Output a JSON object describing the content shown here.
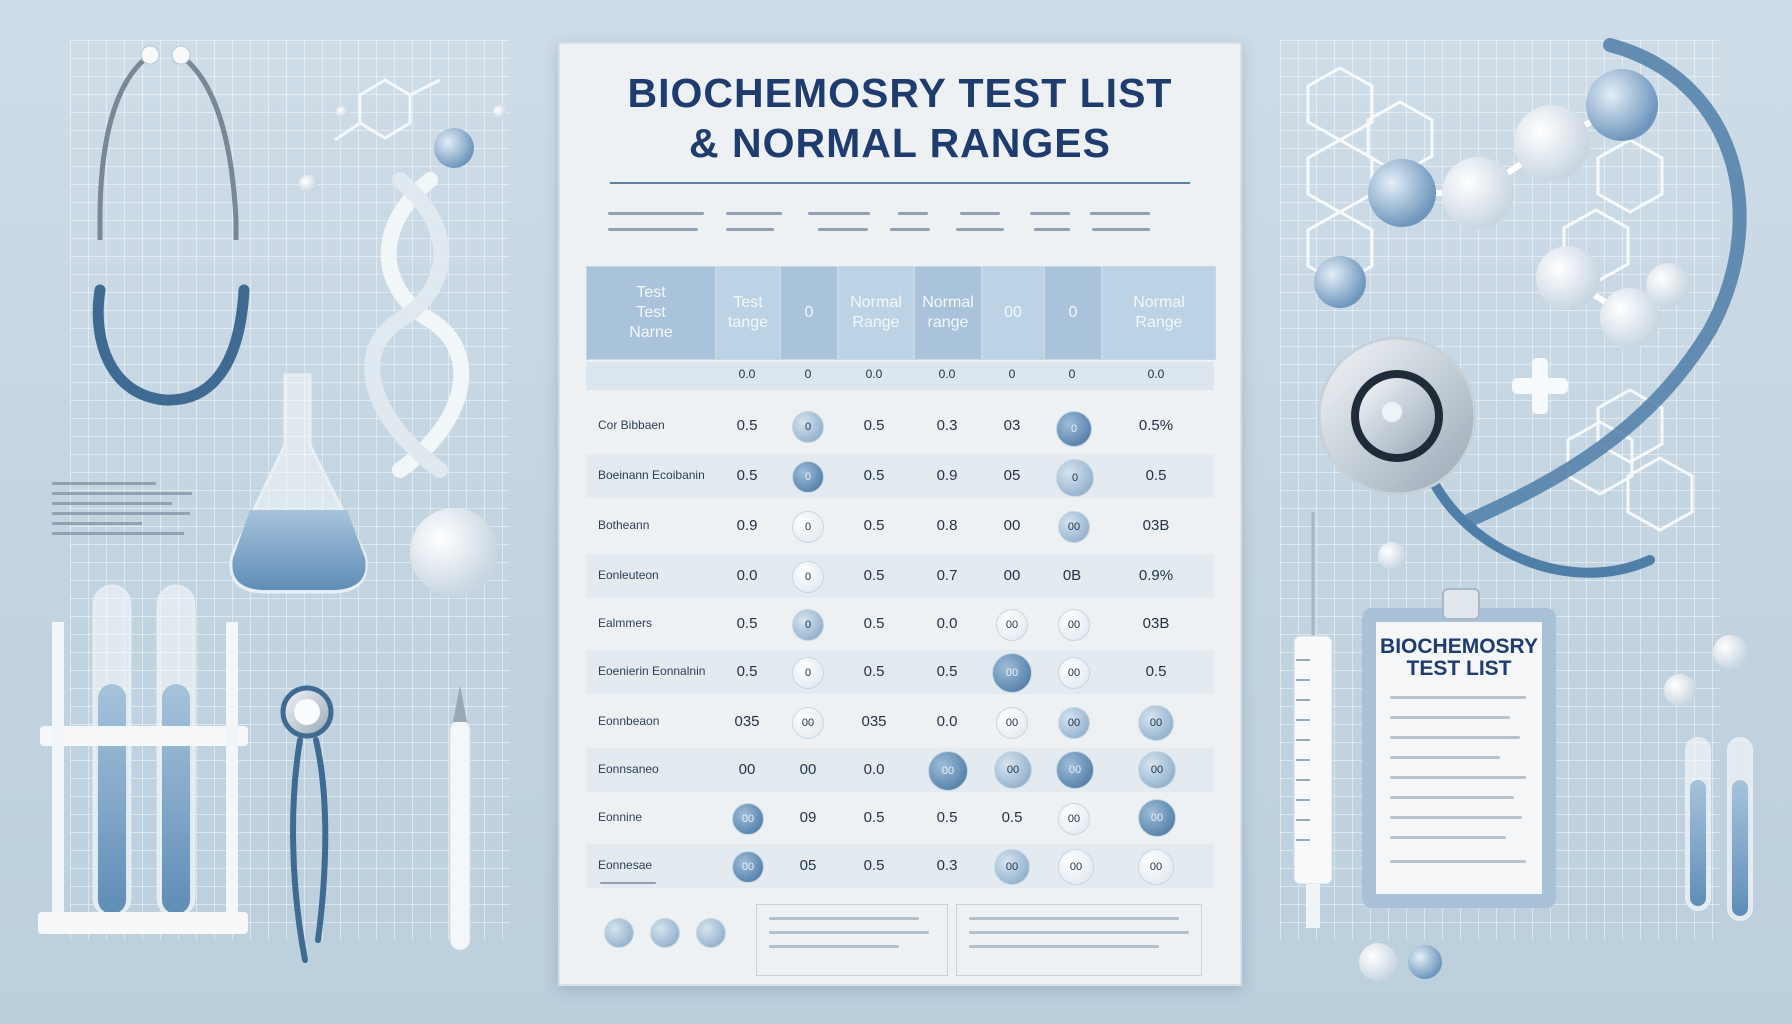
{
  "poster": {
    "title_line1": "BIOCHEMOSRY TEST LIST",
    "title_line2": "& NORMAL RANGES",
    "headers": [
      {
        "lines": [
          "Test",
          "Test",
          "Narne"
        ]
      },
      {
        "lines": [
          "Test",
          "tange"
        ]
      },
      {
        "lines": [
          "0"
        ]
      },
      {
        "lines": [
          "Normal",
          "Range"
        ]
      },
      {
        "lines": [
          "Normal",
          "range"
        ]
      },
      {
        "lines": [
          "00"
        ]
      },
      {
        "lines": [
          "0"
        ]
      },
      {
        "lines": [
          "Normal",
          "Range"
        ]
      }
    ],
    "subheader": [
      "0.0",
      "0",
      "0.0",
      "0.0",
      "0",
      "0",
      "0.0"
    ],
    "rows": [
      {
        "label": "Cor Bibbaen",
        "values": [
          "0.5",
          "0",
          "0.5",
          "0.3",
          "03",
          "0",
          "0.5%"
        ]
      },
      {
        "label": "Boeinann Ecoibanin",
        "values": [
          "0.5",
          "0",
          "0.5",
          "0.9",
          "05",
          "0",
          "0.5"
        ]
      },
      {
        "label": "Botheann",
        "values": [
          "0.9",
          "0",
          "0.5",
          "0.8",
          "00",
          "00",
          "03B"
        ]
      },
      {
        "label": "Eonleuteon",
        "values": [
          "0.0",
          "0",
          "0.5",
          "0.7",
          "00",
          "0B",
          "0.9%"
        ]
      },
      {
        "label": "Ealmmers",
        "values": [
          "0.5",
          "0",
          "0.5",
          "0.0",
          "00",
          "00",
          "03B"
        ]
      },
      {
        "label": "Eoenierin Eonnalnin",
        "values": [
          "0.5",
          "0",
          "0.5",
          "0.5",
          "00",
          "00",
          "0.5"
        ]
      },
      {
        "label": "Eonnbeaon",
        "values": [
          "035",
          "00",
          "035",
          "0.0",
          "00",
          "00",
          "00"
        ]
      },
      {
        "label": "Eonnsaneo",
        "values": [
          "00",
          "00",
          "0.0",
          "00",
          "00",
          "00",
          "00"
        ]
      },
      {
        "label": "Eonnine",
        "values": [
          "00",
          "09",
          "0.5",
          "0.5",
          "0.5",
          "00",
          "00"
        ]
      },
      {
        "label": "Eonnesae",
        "values": [
          "00",
          "05",
          "0.5",
          "0.3",
          "00",
          "00",
          "00"
        ]
      }
    ]
  },
  "clipboard": {
    "title_line1": "BIOCHEMOSRY",
    "title_line2": "TEST LIST"
  },
  "colors": {
    "accent": "#1f3c6e",
    "header_fill": "#a8c3da",
    "background": "#c8d8e4"
  }
}
